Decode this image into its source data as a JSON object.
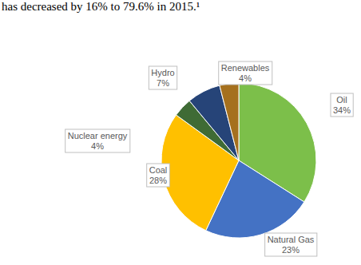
{
  "chart_data": {
    "type": "pie",
    "annotation": "has decreased by 16% to 79.6% in 2015.¹",
    "categories": [
      "Oil",
      "Natural Gas",
      "Coal",
      "Nuclear energy",
      "Hydro",
      "Renewables"
    ],
    "values": [
      34,
      23,
      28,
      4,
      7,
      4
    ],
    "value_labels": [
      "34%",
      "23%",
      "28%",
      "4%",
      "7%",
      "4%"
    ],
    "colors": [
      "#7cbf4a",
      "#4472c4",
      "#ffc000",
      "#3f6b35",
      "#264478",
      "#a5701e"
    ],
    "data_labels": true
  }
}
